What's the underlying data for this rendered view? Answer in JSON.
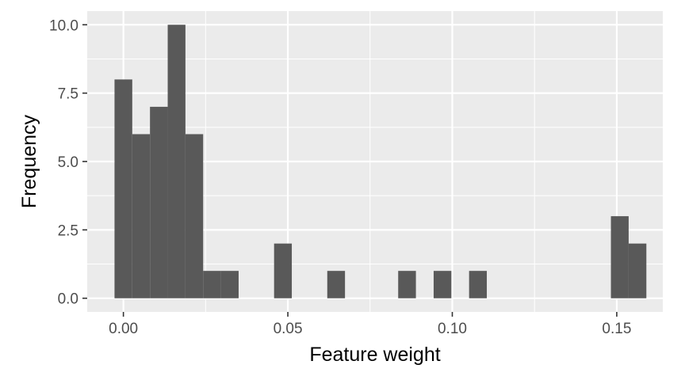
{
  "chart_data": {
    "type": "bar",
    "xlabel": "Feature weight",
    "ylabel": "Frequency",
    "xlim": [
      -0.011,
      0.164
    ],
    "ylim": [
      -0.5,
      10.5
    ],
    "x_ticks": [
      {
        "value": 0.0,
        "label": "0.00"
      },
      {
        "value": 0.05,
        "label": "0.05"
      },
      {
        "value": 0.1,
        "label": "0.10"
      },
      {
        "value": 0.15,
        "label": "0.15"
      }
    ],
    "y_ticks": [
      {
        "value": 0.0,
        "label": "0.0"
      },
      {
        "value": 2.5,
        "label": "2.5"
      },
      {
        "value": 5.0,
        "label": "5.0"
      },
      {
        "value": 7.5,
        "label": "7.5"
      },
      {
        "value": 10.0,
        "label": "10.0"
      }
    ],
    "bin_width": 0.00539,
    "bins": [
      {
        "x": 0.0,
        "count": 8
      },
      {
        "x": 0.00539,
        "count": 6
      },
      {
        "x": 0.01078,
        "count": 7
      },
      {
        "x": 0.01617,
        "count": 10
      },
      {
        "x": 0.02156,
        "count": 6
      },
      {
        "x": 0.02695,
        "count": 1
      },
      {
        "x": 0.03234,
        "count": 1
      },
      {
        "x": 0.04851,
        "count": 2
      },
      {
        "x": 0.06468,
        "count": 1
      },
      {
        "x": 0.08624,
        "count": 1
      },
      {
        "x": 0.09702,
        "count": 1
      },
      {
        "x": 0.1078,
        "count": 1
      },
      {
        "x": 0.15092,
        "count": 3
      },
      {
        "x": 0.15631,
        "count": 2
      }
    ],
    "grid": true,
    "colors": {
      "panel_background": "#ebebeb",
      "grid_major": "#ffffff",
      "bar_fill": "#595959",
      "tick_text": "#4d4d4d",
      "tick_mark": "#333333"
    }
  }
}
